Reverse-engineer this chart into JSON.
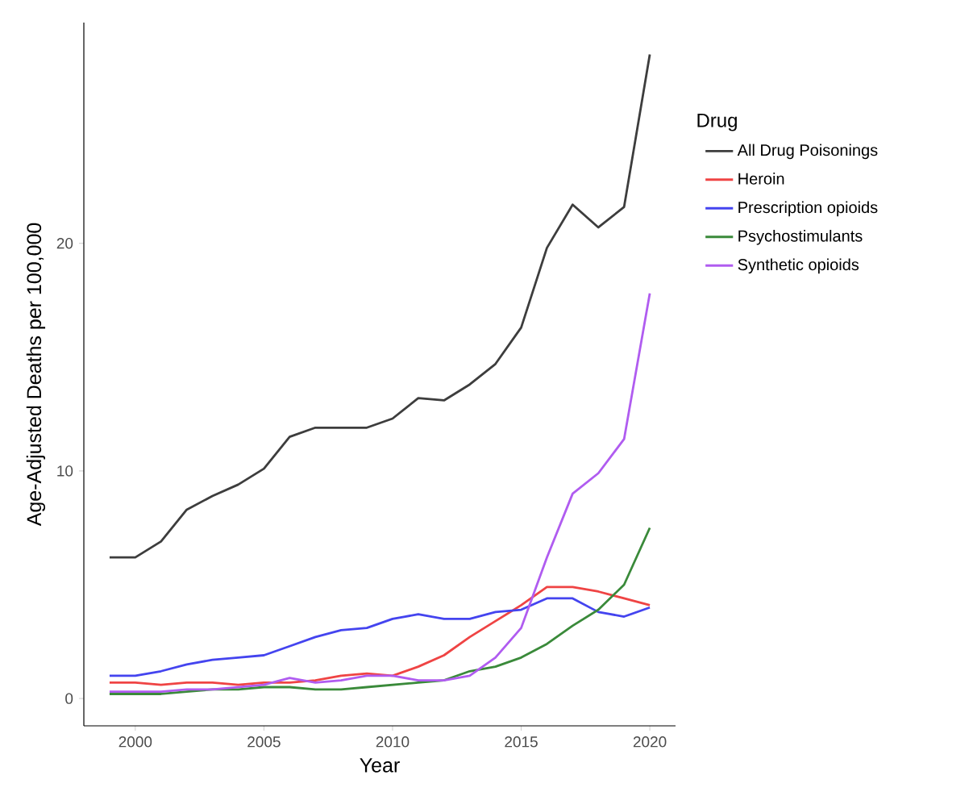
{
  "chart_data": {
    "type": "line",
    "xlabel": "Year",
    "ylabel": "Age-Adjusted Deaths per 100,000",
    "legend_title": "Drug",
    "x": [
      1999,
      2000,
      2001,
      2002,
      2003,
      2004,
      2005,
      2006,
      2007,
      2008,
      2009,
      2010,
      2011,
      2012,
      2013,
      2014,
      2015,
      2016,
      2017,
      2018,
      2019,
      2020
    ],
    "series": [
      {
        "name": "All Drug Poisonings",
        "color": "#3d3d3d",
        "values": [
          6.2,
          6.2,
          6.9,
          8.3,
          8.9,
          9.4,
          10.1,
          11.5,
          11.9,
          11.9,
          11.9,
          12.3,
          13.2,
          13.1,
          13.8,
          14.7,
          16.3,
          19.8,
          21.7,
          20.7,
          21.6,
          28.3
        ]
      },
      {
        "name": "Heroin",
        "color": "#ef4444",
        "values": [
          0.7,
          0.7,
          0.6,
          0.7,
          0.7,
          0.6,
          0.7,
          0.7,
          0.8,
          1.0,
          1.1,
          1.0,
          1.4,
          1.9,
          2.7,
          3.4,
          4.1,
          4.9,
          4.9,
          4.7,
          4.4,
          4.1
        ]
      },
      {
        "name": "Prescription opioids",
        "color": "#4444ef",
        "values": [
          1.0,
          1.0,
          1.2,
          1.5,
          1.7,
          1.8,
          1.9,
          2.3,
          2.7,
          3.0,
          3.1,
          3.5,
          3.7,
          3.5,
          3.5,
          3.8,
          3.9,
          4.4,
          4.4,
          3.8,
          3.6,
          4.0
        ]
      },
      {
        "name": "Psychostimulants",
        "color": "#3a8a3a",
        "values": [
          0.2,
          0.2,
          0.2,
          0.3,
          0.4,
          0.4,
          0.5,
          0.5,
          0.4,
          0.4,
          0.5,
          0.6,
          0.7,
          0.8,
          1.2,
          1.4,
          1.8,
          2.4,
          3.2,
          3.9,
          5.0,
          7.5
        ]
      },
      {
        "name": "Synthetic opioids",
        "color": "#b05cf0",
        "values": [
          0.3,
          0.3,
          0.3,
          0.4,
          0.4,
          0.5,
          0.6,
          0.9,
          0.7,
          0.8,
          1.0,
          1.0,
          0.8,
          0.8,
          1.0,
          1.8,
          3.1,
          6.2,
          9.0,
          9.9,
          11.4,
          17.8
        ]
      }
    ],
    "xlim": [
      1998,
      2021
    ],
    "xticks": [
      2000,
      2005,
      2010,
      2015,
      2020
    ],
    "ylim": [
      -1.2,
      29.7
    ],
    "yticks": [
      0,
      10,
      20
    ],
    "grid": false,
    "legend": "right",
    "marker": "none",
    "line_style": "solid"
  }
}
